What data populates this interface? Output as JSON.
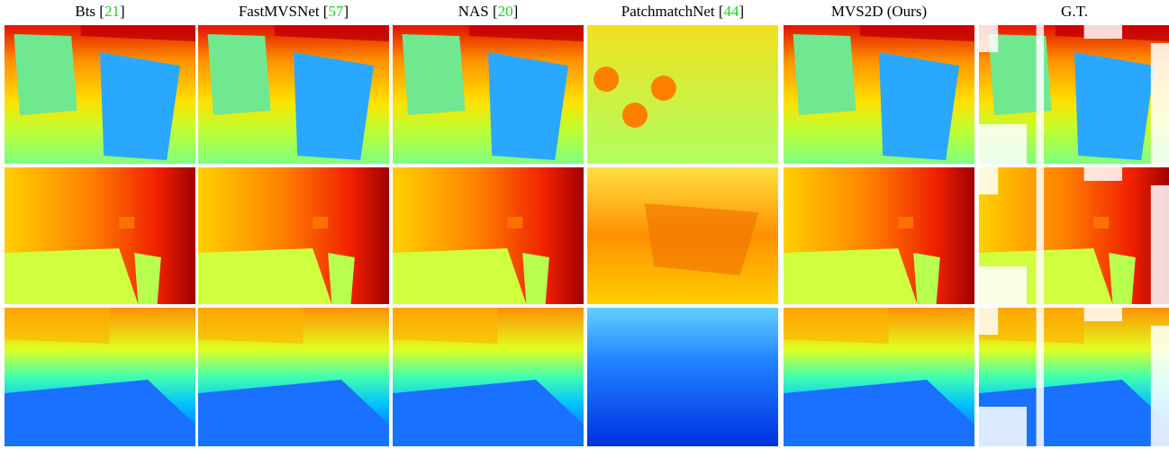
{
  "headers": [
    {
      "parts": [
        "Bts [",
        "21",
        "]"
      ]
    },
    {
      "parts": [
        "FastMVSNet [",
        "57",
        "]"
      ]
    },
    {
      "parts": [
        "NAS [",
        "20",
        "]"
      ]
    },
    {
      "parts": [
        "PatchmatchNet [",
        "44",
        "]"
      ]
    },
    {
      "parts": [
        "MVS2D (Ours)"
      ]
    },
    {
      "parts": [
        "G.T."
      ]
    }
  ]
}
